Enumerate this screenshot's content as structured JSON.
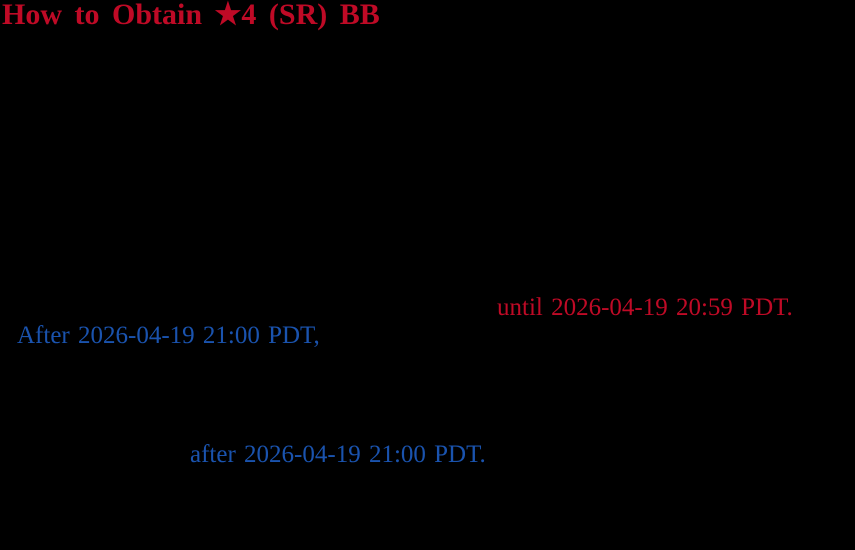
{
  "page": {
    "background": "#000000",
    "article": {
      "title": {
        "text": "How to Obtain ★4 (SR) BB",
        "color": "#bf0a26"
      },
      "highlights": [
        {
          "text": "until 2026-04-19 20:59 PDT.",
          "color": "#bf0a26"
        },
        {
          "text": "After 2026-04-19 21:00 PDT,",
          "color": "#1a53ae"
        },
        {
          "text": "after 2026-04-19 21:00 PDT.",
          "color": "#1a53ae"
        }
      ]
    }
  }
}
